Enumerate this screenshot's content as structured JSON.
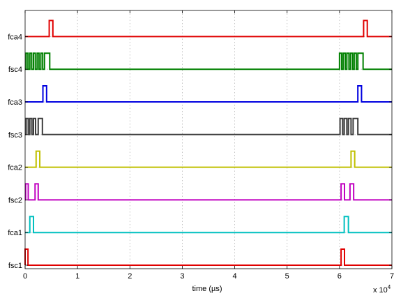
{
  "chart_data": {
    "type": "line",
    "title": "",
    "xlabel": "time (µs)",
    "ylabel": "",
    "x_multiplier": "x 10",
    "x_multiplier_exp": "4",
    "xlim": [
      0,
      70000
    ],
    "x_ticks": [
      {
        "value": 0,
        "label": "0"
      },
      {
        "value": 10000,
        "label": "1"
      },
      {
        "value": 20000,
        "label": "2"
      },
      {
        "value": 30000,
        "label": "3"
      },
      {
        "value": 40000,
        "label": "4"
      },
      {
        "value": 50000,
        "label": "5"
      },
      {
        "value": 60000,
        "label": "6"
      },
      {
        "value": 70000,
        "label": "7"
      }
    ],
    "grid": true,
    "series": [
      {
        "name": "fsc1",
        "color": "#e00000",
        "pulses": [
          [
            0,
            550
          ],
          [
            60300,
            60950
          ]
        ]
      },
      {
        "name": "fca1",
        "color": "#00c0c0",
        "pulses": [
          [
            900,
            1600
          ],
          [
            60900,
            61700
          ]
        ]
      },
      {
        "name": "fsc2",
        "color": "#c000c0",
        "pulses": [
          [
            100,
            600
          ],
          [
            1900,
            2500
          ],
          [
            60300,
            60950
          ],
          [
            62000,
            62700
          ]
        ]
      },
      {
        "name": "fca2",
        "color": "#c0c000",
        "pulses": [
          [
            2100,
            2800
          ],
          [
            62200,
            62900
          ]
        ]
      },
      {
        "name": "fsc3",
        "color": "#3c3c3c",
        "pulses": [
          [
            200,
            600
          ],
          [
            900,
            1300
          ],
          [
            1600,
            2000
          ],
          [
            2500,
            3300
          ],
          [
            60100,
            60600
          ],
          [
            60900,
            61400
          ],
          [
            61700,
            62200
          ],
          [
            62600,
            63500
          ]
        ]
      },
      {
        "name": "fca3",
        "color": "#0000e0",
        "pulses": [
          [
            3400,
            4100
          ],
          [
            63500,
            64200
          ]
        ]
      },
      {
        "name": "fsc4",
        "color": "#008000",
        "pulses": [
          [
            200,
            550
          ],
          [
            900,
            1250
          ],
          [
            1600,
            1950
          ],
          [
            2300,
            2650
          ],
          [
            3000,
            3350
          ],
          [
            3700,
            4700
          ],
          [
            60000,
            60400
          ],
          [
            60700,
            61100
          ],
          [
            61400,
            61800
          ],
          [
            62100,
            62500
          ],
          [
            62800,
            63200
          ],
          [
            63500,
            64500
          ]
        ]
      },
      {
        "name": "fca4",
        "color": "#e00000",
        "pulses": [
          [
            4600,
            5300
          ],
          [
            64600,
            65300
          ]
        ]
      }
    ]
  }
}
